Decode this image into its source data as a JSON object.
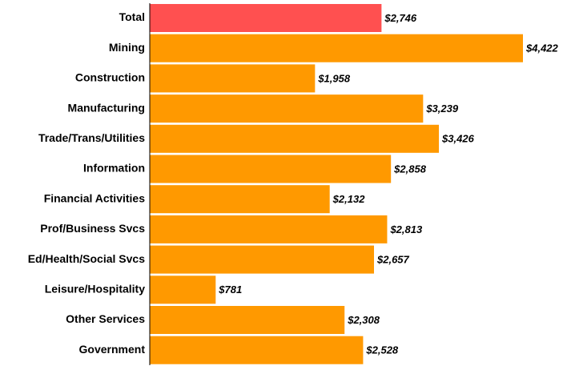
{
  "chart_data": {
    "type": "bar",
    "orientation": "horizontal",
    "categories": [
      "Total",
      "Mining",
      "Construction",
      "Manufacturing",
      "Trade/Trans/Utilities",
      "Information",
      "Financial Activities",
      "Prof/Business Svcs",
      "Ed/Health/Social Svcs",
      "Leisure/Hospitality",
      "Other Services",
      "Government"
    ],
    "values": [
      2746,
      4422,
      1958,
      3239,
      3426,
      2858,
      2132,
      2813,
      2657,
      781,
      2308,
      2528
    ],
    "value_labels": [
      "$2,746",
      "$4,422",
      "$1,958",
      "$3,239",
      "$3,426",
      "$2,858",
      "$2,132",
      "$2,813",
      "$2,657",
      "$781",
      "$2,308",
      "$2,528"
    ],
    "colors": [
      "#ff5050",
      "#ff9900",
      "#ff9900",
      "#ff9900",
      "#ff9900",
      "#ff9900",
      "#ff9900",
      "#ff9900",
      "#ff9900",
      "#ff9900",
      "#ff9900",
      "#ff9900"
    ]
  }
}
